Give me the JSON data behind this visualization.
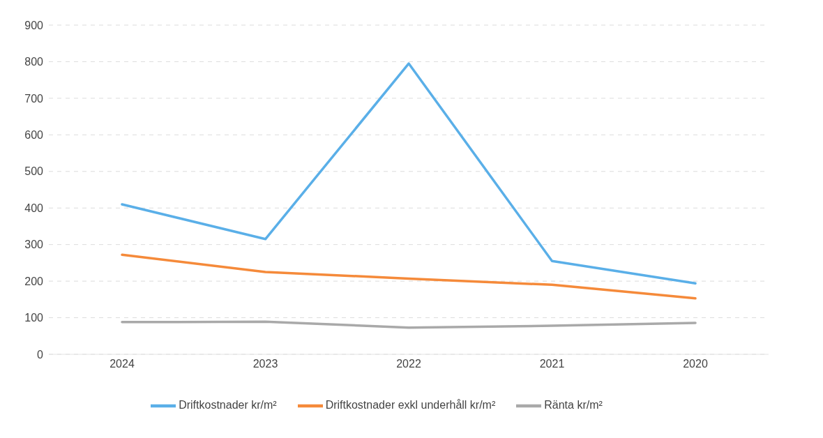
{
  "chart_data": {
    "type": "line",
    "categories": [
      "2024",
      "2023",
      "2022",
      "2021",
      "2020"
    ],
    "series": [
      {
        "name": "Driftkostnader kr/m²",
        "color": "#5aafe8",
        "values": [
          410,
          315,
          795,
          255,
          194
        ]
      },
      {
        "name": "Driftkostnader exkl underhåll kr/m²",
        "color": "#f58a3a",
        "values": [
          272,
          225,
          207,
          190,
          153
        ]
      },
      {
        "name": "Ränta kr/m²",
        "color": "#a9a9a9",
        "values": [
          88,
          89,
          73,
          78,
          86
        ]
      }
    ],
    "ylim": [
      0,
      900
    ],
    "yticks": [
      0,
      100,
      200,
      300,
      400,
      500,
      600,
      700,
      800,
      900
    ],
    "grid": "y",
    "legend": "bottom",
    "marker": "none",
    "line_style": "solid"
  }
}
